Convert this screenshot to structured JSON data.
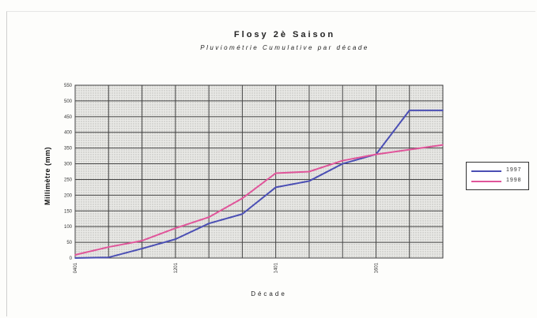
{
  "chart_data": {
    "type": "line",
    "title": "Flosy 2è Saison",
    "subtitle": "Pluviométrie Cumulative par décade",
    "xlabel": "Décade",
    "ylabel": "Millimètre (mm)",
    "ylim": [
      0,
      550
    ],
    "yticks": [
      "0",
      "50",
      "100",
      "150",
      "200",
      "250",
      "300",
      "350",
      "400",
      "450",
      "500",
      "550"
    ],
    "x": [
      1,
      2,
      3,
      4,
      5,
      6,
      7,
      8,
      9,
      10,
      11,
      12
    ],
    "xticks": [
      {
        "pos": 1,
        "label": "0401"
      },
      {
        "pos": 4,
        "label": "1201"
      },
      {
        "pos": 7,
        "label": "1401"
      },
      {
        "pos": 10,
        "label": "1601"
      }
    ],
    "grid": true,
    "legend_position": "right",
    "series": [
      {
        "name": "1997",
        "color": "#4b4fb4",
        "values": [
          0,
          2,
          30,
          60,
          110,
          140,
          225,
          245,
          300,
          330,
          470,
          470
        ]
      },
      {
        "name": "1998",
        "color": "#e0559a",
        "values": [
          10,
          35,
          55,
          95,
          130,
          190,
          270,
          275,
          310,
          330,
          345,
          360
        ]
      }
    ]
  }
}
